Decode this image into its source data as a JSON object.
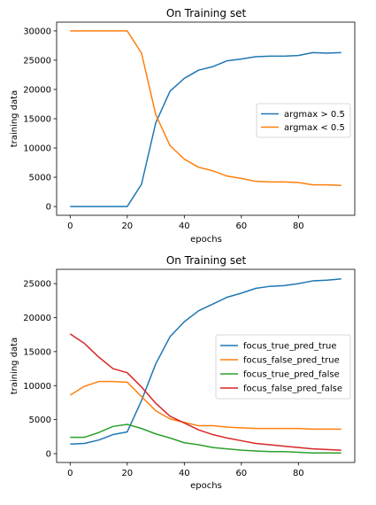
{
  "chart_data": [
    {
      "type": "line",
      "title": "On Training set",
      "xlabel": "epochs",
      "ylabel": "training data",
      "xlim": [
        -4.75,
        99.75
      ],
      "ylim": [
        -1500,
        31500
      ],
      "xticks": [
        0,
        20,
        40,
        60,
        80
      ],
      "yticks": [
        0,
        5000,
        10000,
        15000,
        20000,
        25000,
        30000
      ],
      "legend": "center-right",
      "grid": false,
      "x": [
        0,
        5,
        10,
        15,
        20,
        25,
        30,
        35,
        40,
        45,
        50,
        55,
        60,
        65,
        70,
        75,
        80,
        85,
        90,
        95
      ],
      "series": [
        {
          "name": "argmax > 0.5",
          "color": "#1f77b4",
          "values": [
            0,
            0,
            0,
            0,
            0,
            3800,
            14300,
            19700,
            21900,
            23300,
            23900,
            24900,
            25200,
            25600,
            25700,
            25700,
            25800,
            26300,
            26200,
            26300
          ]
        },
        {
          "name": "argmax < 0.5",
          "color": "#ff7f0e",
          "values": [
            30000,
            30000,
            30000,
            30000,
            30000,
            26200,
            15700,
            10400,
            8100,
            6700,
            6100,
            5200,
            4800,
            4300,
            4200,
            4200,
            4100,
            3700,
            3700,
            3600
          ]
        }
      ]
    },
    {
      "type": "line",
      "title": "On Training set",
      "xlabel": "epochs",
      "ylabel": "training data",
      "xlim": [
        -4.75,
        99.75
      ],
      "ylim": [
        -1300,
        27100
      ],
      "xticks": [
        0,
        20,
        40,
        60,
        80
      ],
      "yticks": [
        0,
        5000,
        10000,
        15000,
        20000,
        25000
      ],
      "legend": "center-right",
      "grid": false,
      "x": [
        0,
        5,
        10,
        15,
        20,
        25,
        30,
        35,
        40,
        45,
        50,
        55,
        60,
        65,
        70,
        75,
        80,
        85,
        90,
        95
      ],
      "series": [
        {
          "name": "focus_true_pred_true",
          "color": "#1f77b4",
          "values": [
            1400,
            1500,
            2000,
            2800,
            3200,
            7800,
            13200,
            17200,
            19400,
            21000,
            22000,
            23000,
            23600,
            24300,
            24600,
            24700,
            25000,
            25400,
            25500,
            25700
          ]
        },
        {
          "name": "focus_false_pred_true",
          "color": "#ff7f0e",
          "values": [
            8600,
            9900,
            10600,
            10600,
            10500,
            8400,
            6300,
            5100,
            4600,
            4100,
            4100,
            3900,
            3800,
            3700,
            3700,
            3700,
            3700,
            3600,
            3600,
            3600
          ]
        },
        {
          "name": "focus_true_pred_false",
          "color": "#2ca02c",
          "values": [
            2400,
            2400,
            3100,
            4000,
            4300,
            3700,
            2900,
            2300,
            1600,
            1300,
            900,
            700,
            500,
            400,
            300,
            300,
            200,
            100,
            100,
            100
          ]
        },
        {
          "name": "focus_false_pred_false",
          "color": "#d62728",
          "values": [
            17600,
            16200,
            14200,
            12500,
            11900,
            9800,
            7400,
            5500,
            4500,
            3500,
            2800,
            2300,
            1900,
            1500,
            1300,
            1100,
            900,
            700,
            600,
            500
          ]
        }
      ]
    }
  ]
}
